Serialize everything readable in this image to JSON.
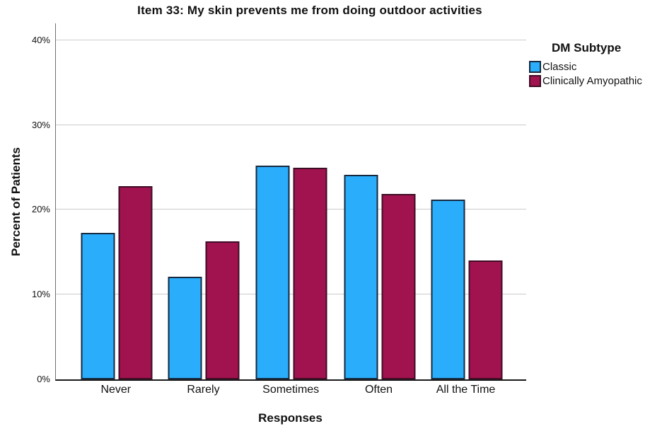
{
  "chart_data": {
    "type": "bar",
    "title": "Item 33: My skin prevents me from doing outdoor activities",
    "xlabel": "Responses",
    "ylabel": "Percent of Patients",
    "categories": [
      "Never",
      "Rarely",
      "Sometimes",
      "Often",
      "All the Time"
    ],
    "series": [
      {
        "name": "Classic",
        "fill": "#2AADFB",
        "border": "#16293F",
        "values": [
          17.3,
          12.1,
          25.2,
          24.1,
          21.2
        ]
      },
      {
        "name": "Clinically Amyopathic",
        "fill": "#A1134E",
        "border": "#3F0C26",
        "values": [
          22.8,
          16.3,
          25.0,
          21.9,
          14.0
        ]
      }
    ],
    "y_ticks": [
      {
        "label": "0%",
        "value": 0
      },
      {
        "label": "10%",
        "value": 10
      },
      {
        "label": "20%",
        "value": 20
      },
      {
        "label": "30%",
        "value": 30
      },
      {
        "label": "40%",
        "value": 40
      }
    ],
    "ylim": [
      0,
      42
    ],
    "grid": "horizontal-only",
    "gridline_color": "#CBCBCB",
    "legend_title": "DM Subtype",
    "legend_position": "right",
    "group_centers_pct": [
      12.9,
      31.5,
      50.1,
      68.8,
      87.3
    ]
  }
}
